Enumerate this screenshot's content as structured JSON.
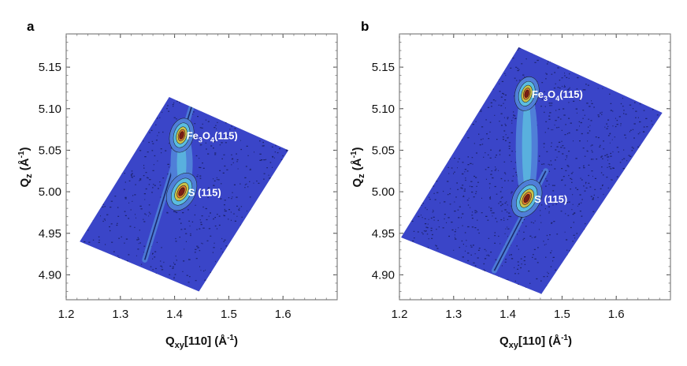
{
  "chart_data": [
    {
      "type": "contour-map",
      "panel_label": "a",
      "xlabel": {
        "main": "Q",
        "sub": "xy",
        "rest": "[110] (Å",
        "sup": "-1",
        "close": ")"
      },
      "ylabel": {
        "main": "Q",
        "sub": "z",
        "rest": " (Å",
        "sup": "-1",
        "close": ")"
      },
      "xlim": [
        1.2,
        1.7
      ],
      "ylim": [
        4.87,
        5.19
      ],
      "x_ticks": [
        "1.2",
        "1.3",
        "1.4",
        "1.5",
        "1.6"
      ],
      "y_ticks": [
        "4.90",
        "4.95",
        "5.00",
        "5.05",
        "5.10",
        "5.15"
      ],
      "mapped_region": [
        [
          1.225,
          4.94
        ],
        [
          1.39,
          5.114
        ],
        [
          1.61,
          5.05
        ],
        [
          1.445,
          4.88
        ]
      ],
      "streak_line": [
        [
          1.345,
          4.918
        ],
        [
          1.435,
          5.11
        ]
      ],
      "peaks": [
        {
          "name": "fe3o4",
          "label_main": "Fe",
          "label_sub1": "3",
          "label_mid": "O",
          "label_sub2": "4",
          "label_tail": "(115)",
          "x": 1.413,
          "y": 5.068,
          "label_x": 1.422,
          "label_y": 5.063
        },
        {
          "name": "substrate",
          "label": "S (115)",
          "x": 1.413,
          "y": 5.0,
          "label_x": 1.425,
          "label_y": 4.995
        }
      ]
    },
    {
      "type": "contour-map",
      "panel_label": "b",
      "xlabel": {
        "main": "Q",
        "sub": "xy",
        "rest": "[110] (Å",
        "sup": "-1",
        "close": ")"
      },
      "ylabel": {
        "main": "Q",
        "sub": "z",
        "rest": " (Å",
        "sup": "-1",
        "close": ")"
      },
      "xlim": [
        1.2,
        1.7
      ],
      "ylim": [
        4.87,
        5.19
      ],
      "x_ticks": [
        "1.2",
        "1.3",
        "1.4",
        "1.5",
        "1.6"
      ],
      "y_ticks": [
        "4.90",
        "4.95",
        "5.00",
        "5.05",
        "5.10",
        "5.15"
      ],
      "mapped_region": [
        [
          1.203,
          4.945
        ],
        [
          1.42,
          5.174
        ],
        [
          1.685,
          5.095
        ],
        [
          1.462,
          4.877
        ]
      ],
      "streak_line": [
        [
          1.375,
          4.905
        ],
        [
          1.47,
          5.025
        ]
      ],
      "peaks": [
        {
          "name": "fe3o4",
          "label_main": "Fe",
          "label_sub1": "3",
          "label_mid": "O",
          "label_sub2": "4",
          "label_tail": "(115)",
          "x": 1.435,
          "y": 5.118,
          "label_x": 1.444,
          "label_y": 5.113
        },
        {
          "name": "substrate",
          "label": "S (115)",
          "x": 1.435,
          "y": 4.992,
          "label_x": 1.449,
          "label_y": 4.987
        }
      ]
    }
  ],
  "colors": {
    "map_fill": "#3a45c8",
    "noise_dot": "#141a52",
    "contour_1": "#4f7fd8",
    "contour_2": "#5bbde0",
    "contour_3": "#c8c24a",
    "contour_4": "#e07a2a",
    "peak_core": "#7a1d14",
    "streak": "#1a2a6a"
  }
}
